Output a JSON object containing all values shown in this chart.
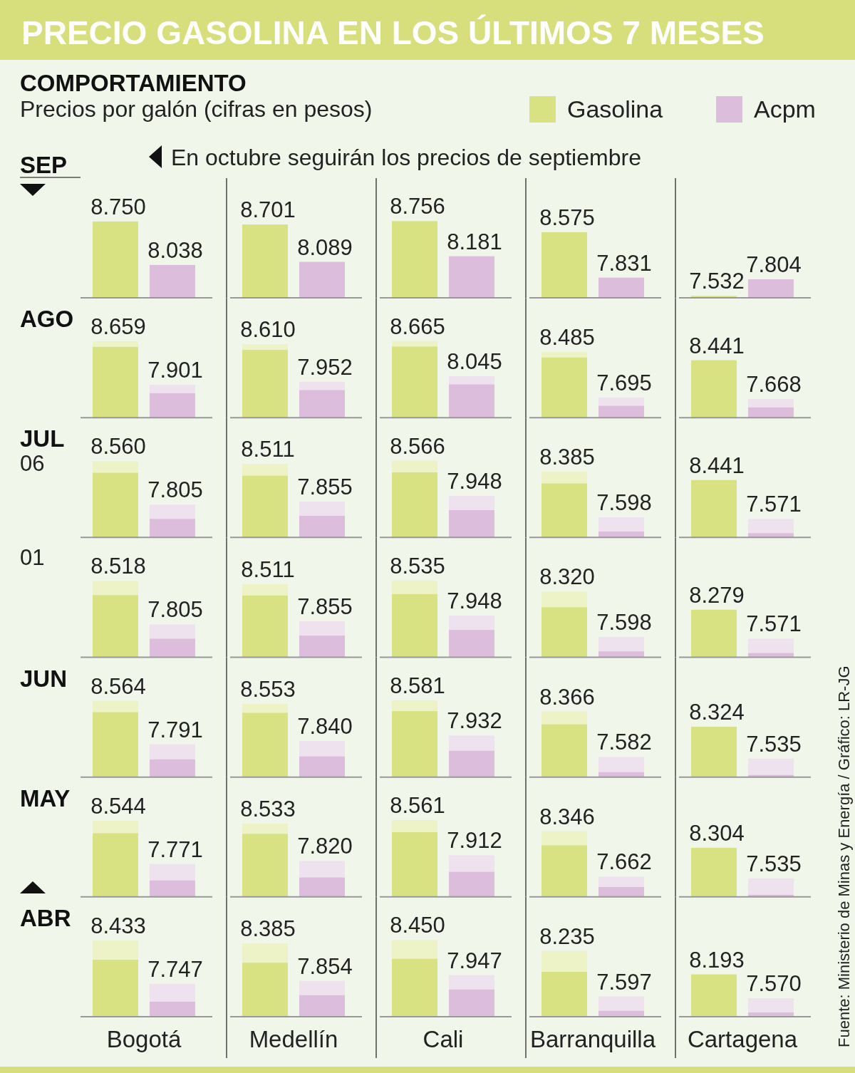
{
  "chart_data": [
    {
      "type": "other",
      "title": "PRECIO GASOLINA EN LOS ÚLTIMOS 7 MESES",
      "subtitle": "COMPORTAMIENTO",
      "annotations": [
        "Precios por galón (cifras en pesos)",
        "En octubre seguirán los precios de septiembre",
        "Fuente: Ministerio de Minas y Energía / Gráfico: LR-JG"
      ]
    },
    {
      "type": "bar",
      "title": "SEP",
      "categories": [
        null,
        null,
        null,
        null,
        null
      ],
      "ylim": [
        7500,
        8756
      ],
      "tick_labels": false,
      "legend": "top right",
      "series": [
        {
          "name": "Gasolina",
          "color": "#d8e283",
          "values": [
            8750,
            8701,
            8756,
            8575,
            7532
          ],
          "value_labels": [
            "8.750",
            "8.701",
            "8.756",
            "8.575",
            "7.532"
          ]
        },
        {
          "name": "Acpm",
          "color": "#dcbedc",
          "values": [
            8038,
            8089,
            8181,
            7831,
            7804
          ],
          "value_labels": [
            "8.038",
            "8.089",
            "8.181",
            "7.831",
            "7.804"
          ]
        }
      ]
    },
    {
      "type": "bar",
      "title": "AGO",
      "categories": [
        null,
        null,
        null,
        null,
        null
      ],
      "ylim": [
        7500,
        8756
      ],
      "tick_labels": false,
      "series": [
        {
          "color": "#d8e283",
          "values": [
            8659,
            8610,
            8665,
            8485,
            8441
          ],
          "value_labels": [
            "8.659",
            "8.610",
            "8.665",
            "8.485",
            "8.441"
          ]
        },
        {
          "color": "#dcbedc",
          "values": [
            7901,
            7952,
            8045,
            7695,
            7668
          ],
          "value_labels": [
            "7.901",
            "7.952",
            "8.045",
            "7.695",
            "7.668"
          ]
        }
      ]
    },
    {
      "type": "bar",
      "title": "JUL",
      "subtitle": "06",
      "categories": [
        null,
        null,
        null,
        null,
        null
      ],
      "ylim": [
        7500,
        8756
      ],
      "tick_labels": false,
      "series": [
        {
          "color": "#d8e283",
          "values": [
            8560,
            8511,
            8566,
            8385,
            8441
          ],
          "value_labels": [
            "8.560",
            "8.511",
            "8.566",
            "8.385",
            "8.441"
          ]
        },
        {
          "color": "#dcbedc",
          "values": [
            7805,
            7855,
            7948,
            7598,
            7571
          ],
          "value_labels": [
            "7.805",
            "7.855",
            "7.948",
            "7.598",
            "7.571"
          ]
        }
      ]
    },
    {
      "type": "bar",
      "subtitle": "01",
      "categories": [
        null,
        null,
        null,
        null,
        null
      ],
      "ylim": [
        7500,
        8756
      ],
      "tick_labels": false,
      "series": [
        {
          "color": "#d8e283",
          "values": [
            8518,
            8511,
            8535,
            8320,
            8279
          ],
          "value_labels": [
            "8.518",
            "8.511",
            "8.535",
            "8.320",
            "8.279"
          ]
        },
        {
          "color": "#dcbedc",
          "values": [
            7805,
            7855,
            7948,
            7598,
            7571
          ],
          "value_labels": [
            "7.805",
            "7.855",
            "7.948",
            "7.598",
            "7.571"
          ]
        }
      ]
    },
    {
      "type": "bar",
      "title": "JUN",
      "categories": [
        null,
        null,
        null,
        null,
        null
      ],
      "ylim": [
        7500,
        8756
      ],
      "tick_labels": false,
      "series": [
        {
          "color": "#d8e283",
          "values": [
            8564,
            8553,
            8581,
            8366,
            8324
          ],
          "value_labels": [
            "8.564",
            "8.553",
            "8.581",
            "8.366",
            "8.324"
          ]
        },
        {
          "color": "#dcbedc",
          "values": [
            7791,
            7840,
            7932,
            7582,
            7535
          ],
          "value_labels": [
            "7.791",
            "7.840",
            "7.932",
            "7.582",
            "7.535"
          ]
        }
      ]
    },
    {
      "type": "bar",
      "title": "MAY",
      "categories": [
        null,
        null,
        null,
        null,
        null
      ],
      "ylim": [
        7500,
        8756
      ],
      "tick_labels": false,
      "series": [
        {
          "color": "#d8e283",
          "values": [
            8544,
            8533,
            8561,
            8346,
            8304
          ],
          "value_labels": [
            "8.544",
            "8.533",
            "8.561",
            "8.346",
            "8.304"
          ]
        },
        {
          "color": "#dcbedc",
          "values": [
            7771,
            7820,
            7912,
            7662,
            7535
          ],
          "value_labels": [
            "7.771",
            "7.820",
            "7.912",
            "7.662",
            "7.535"
          ]
        }
      ]
    },
    {
      "type": "bar",
      "title": "ABR",
      "categories": [
        "Bogotá",
        "Medellín",
        "Cali",
        "Barranquilla",
        "Cartagena"
      ],
      "ylim": [
        7500,
        8756
      ],
      "tick_labels": "x",
      "series": [
        {
          "color": "#d8e283",
          "values": [
            8433,
            8385,
            8450,
            8235,
            8193
          ],
          "value_labels": [
            "8.433",
            "8.385",
            "8.450",
            "8.235",
            "8.193"
          ]
        },
        {
          "color": "#dcbedc",
          "values": [
            7747,
            7854,
            7947,
            7597,
            7570
          ],
          "value_labels": [
            "7.747",
            "7.854",
            "7.947",
            "7.597",
            "7.570"
          ]
        }
      ]
    }
  ]
}
